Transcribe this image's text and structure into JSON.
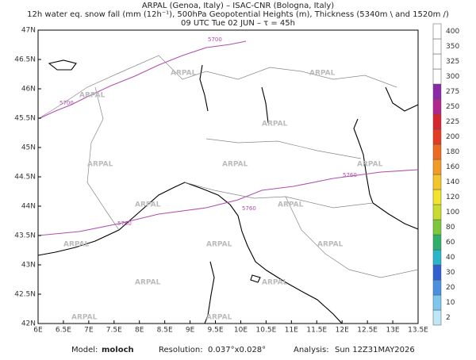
{
  "header": {
    "line1": "ARPAL (Genoa, Italy)  –  ISAC-CNR (Bologna, Italy)",
    "line2": "12h water eq. snow fall (mm (12h⁻¹), 500hPa Geopotential Heights (m), Thickness (5340m \\ and 1520m /)",
    "line3": "09 UTC Tue 02 JUN  –  τ = 45h"
  },
  "map": {
    "xlim": [
      6,
      13.5
    ],
    "ylim": [
      42,
      47
    ],
    "xticks": [
      {
        "value": 6,
        "label": "6E"
      },
      {
        "value": 6.5,
        "label": "6.5E"
      },
      {
        "value": 7,
        "label": "7E"
      },
      {
        "value": 7.5,
        "label": "7.5E"
      },
      {
        "value": 8,
        "label": "8E"
      },
      {
        "value": 8.5,
        "label": "8.5E"
      },
      {
        "value": 9,
        "label": "9E"
      },
      {
        "value": 9.5,
        "label": "9.5E"
      },
      {
        "value": 10,
        "label": "10E"
      },
      {
        "value": 10.5,
        "label": "10.5E"
      },
      {
        "value": 11,
        "label": "11E"
      },
      {
        "value": 11.5,
        "label": "11.5E"
      },
      {
        "value": 12,
        "label": "12E"
      },
      {
        "value": 12.5,
        "label": "12.5E"
      },
      {
        "value": 13,
        "label": "13E"
      },
      {
        "value": 13.5,
        "label": "13.5E"
      }
    ],
    "yticks": [
      {
        "value": 42,
        "label": "42N"
      },
      {
        "value": 42.5,
        "label": "42.5N"
      },
      {
        "value": 43,
        "label": "43N"
      },
      {
        "value": 43.5,
        "label": "43.5N"
      },
      {
        "value": 44,
        "label": "44N"
      },
      {
        "value": 44.5,
        "label": "44.5N"
      },
      {
        "value": 45,
        "label": "45N"
      },
      {
        "value": 45.5,
        "label": "45.5N"
      },
      {
        "value": 46,
        "label": "46N"
      },
      {
        "value": 46.5,
        "label": "46.5N"
      },
      {
        "value": 47,
        "label": "47N"
      }
    ],
    "contour_labels": [
      "5700",
      "5760"
    ],
    "watermark": "ARPAL"
  },
  "colorbar": {
    "levels": [
      2,
      10,
      20,
      30,
      40,
      60,
      80,
      100,
      120,
      140,
      160,
      180,
      200,
      225,
      250,
      275,
      300,
      325,
      350,
      400
    ],
    "colors": [
      "#bfe6f6",
      "#7fc6ee",
      "#4a8fe0",
      "#2f5fd0",
      "#29b6c9",
      "#2fb06a",
      "#7cc83a",
      "#c8dc2e",
      "#f2e42a",
      "#f4c52a",
      "#f29a25",
      "#ee6a22",
      "#e43b25",
      "#d8262f",
      "#b2278f",
      "#8a2aa8",
      "#ffffff",
      "#ffffff",
      "#ffffff",
      "#ffffff"
    ]
  },
  "footer": {
    "model_label": "Model:",
    "model": "moloch",
    "res_label": "Resolution:",
    "resolution": "0.037°x0.028°",
    "analysis_label": "Analysis:",
    "analysis": "Sun 12Z31MAY2026"
  }
}
